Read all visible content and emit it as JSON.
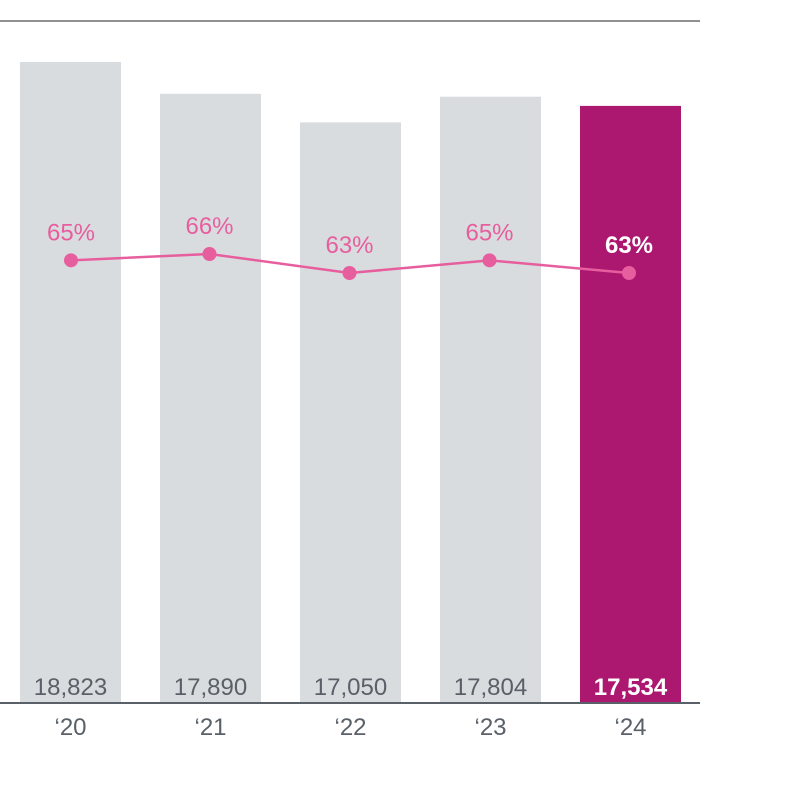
{
  "colors": {
    "bar_default": "#d9dcde",
    "bar_highlight": "#ac1770",
    "line": "#e75e9e",
    "bar_label_default": "#5a6068",
    "bar_label_highlight": "#ffffff",
    "pct_label_default": "#e75e9e",
    "pct_label_highlight": "#ffffff",
    "axis_text": "#5a6068",
    "axis_line": "#5a6068",
    "top_rule": "#222222"
  },
  "chart_data": {
    "type": "bar",
    "categories": [
      "‘20",
      "‘21",
      "‘22",
      "‘23",
      "‘24"
    ],
    "series": [
      {
        "type": "bar",
        "values": [
          18823,
          17890,
          17050,
          17804,
          17534
        ],
        "labels": [
          "18,823",
          "17,890",
          "17,050",
          "17,804",
          "17,534"
        ]
      },
      {
        "type": "line",
        "values": [
          65,
          66,
          63,
          65,
          63
        ],
        "labels": [
          "65%",
          "66%",
          "63%",
          "65%",
          "63%"
        ]
      }
    ],
    "highlight_index": 4,
    "title": "",
    "xlabel": "",
    "ylabel": ""
  }
}
